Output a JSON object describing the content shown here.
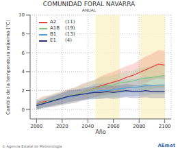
{
  "chart_data": {
    "type": "line",
    "title": "COMUNIDAD FORAL NAVARRA",
    "subtitle": "ANUAL",
    "y_label": "Cambio de la temperatura máxima (°C)",
    "x_label": "Año",
    "footer": "© Agencia Estatal de Meteorología",
    "logo": "AEmet",
    "x": [
      2000,
      2005,
      2010,
      2015,
      2020,
      2025,
      2030,
      2035,
      2040,
      2045,
      2050,
      2055,
      2060,
      2065,
      2070,
      2075,
      2080,
      2085,
      2090,
      2095,
      2100
    ],
    "xlim": [
      1995,
      2105
    ],
    "xticks": [
      2000,
      2020,
      2040,
      2060,
      2080,
      2100
    ],
    "ylim": [
      -1,
      10
    ],
    "yticks": [
      0,
      2,
      4,
      6,
      8,
      10
    ],
    "grid": true,
    "legend": "upper left",
    "shaded_periods": [
      [
        2046,
        2065
      ],
      [
        2081,
        2100
      ]
    ],
    "series": [
      {
        "name": "A2",
        "models": 11,
        "color": "#e8403a",
        "values": [
          0.5,
          0.8,
          0.9,
          1.0,
          1.2,
          1.4,
          1.5,
          1.8,
          2.0,
          2.2,
          2.5,
          2.7,
          2.9,
          3.1,
          3.4,
          3.6,
          3.9,
          4.2,
          4.5,
          4.8,
          4.7
        ],
        "lower": [
          0.0,
          0.2,
          0.3,
          0.3,
          0.5,
          0.6,
          0.7,
          0.9,
          1.1,
          1.3,
          1.5,
          1.6,
          1.8,
          1.9,
          2.2,
          2.4,
          2.6,
          2.8,
          3.1,
          3.3,
          3.2
        ],
        "upper": [
          1.0,
          1.4,
          1.5,
          1.7,
          1.9,
          2.2,
          2.3,
          2.7,
          2.9,
          3.1,
          3.5,
          3.8,
          4.0,
          4.3,
          4.6,
          4.8,
          5.2,
          5.6,
          5.9,
          6.3,
          6.2
        ]
      },
      {
        "name": "A1B",
        "models": 19,
        "color": "#7fc77a",
        "values": [
          0.5,
          0.7,
          0.9,
          1.1,
          1.2,
          1.4,
          1.6,
          1.8,
          2.0,
          2.2,
          2.4,
          2.5,
          2.6,
          2.8,
          2.9,
          3.0,
          3.2,
          3.3,
          3.4,
          3.5,
          3.6
        ],
        "lower": [
          0.0,
          0.1,
          0.3,
          0.4,
          0.5,
          0.7,
          0.8,
          1.0,
          1.1,
          1.3,
          1.4,
          1.5,
          1.6,
          1.7,
          1.8,
          1.9,
          2.0,
          2.1,
          2.2,
          2.3,
          2.3
        ],
        "upper": [
          1.0,
          1.3,
          1.5,
          1.8,
          1.9,
          2.1,
          2.4,
          2.6,
          2.9,
          3.1,
          3.4,
          3.5,
          3.6,
          3.9,
          4.0,
          4.1,
          4.4,
          4.5,
          4.6,
          4.7,
          4.9
        ]
      },
      {
        "name": "B1",
        "models": 13,
        "color": "#5aa0d8",
        "values": [
          0.5,
          0.6,
          0.8,
          1.0,
          1.1,
          1.3,
          1.4,
          1.6,
          1.7,
          1.9,
          2.0,
          2.0,
          2.1,
          2.2,
          2.3,
          2.3,
          2.4,
          2.5,
          2.5,
          2.6,
          2.6
        ],
        "lower": [
          0.0,
          0.1,
          0.2,
          0.4,
          0.5,
          0.6,
          0.7,
          0.9,
          1.0,
          1.1,
          1.2,
          1.2,
          1.3,
          1.3,
          1.4,
          1.4,
          1.5,
          1.5,
          1.6,
          1.6,
          1.6
        ],
        "upper": [
          1.0,
          1.1,
          1.4,
          1.6,
          1.7,
          2.0,
          2.1,
          2.3,
          2.4,
          2.7,
          2.8,
          2.8,
          2.9,
          3.1,
          3.2,
          3.2,
          3.3,
          3.5,
          3.4,
          3.6,
          3.6
        ]
      },
      {
        "name": "E1",
        "models": 4,
        "color": "#2a2f7a",
        "values": [
          0.4,
          0.6,
          0.8,
          1.0,
          1.2,
          1.4,
          1.5,
          1.6,
          1.7,
          1.8,
          1.8,
          1.9,
          1.8,
          1.9,
          2.0,
          1.9,
          1.9,
          2.0,
          1.9,
          1.9,
          1.9
        ],
        "lower": [
          0.0,
          0.2,
          0.3,
          0.5,
          0.6,
          0.8,
          0.9,
          1.0,
          1.1,
          1.1,
          1.1,
          1.2,
          1.1,
          1.2,
          1.3,
          1.2,
          1.2,
          1.3,
          1.2,
          1.2,
          1.2
        ],
        "upper": [
          0.8,
          1.0,
          1.3,
          1.5,
          1.8,
          2.0,
          2.1,
          2.2,
          2.3,
          2.5,
          2.5,
          2.6,
          2.5,
          2.6,
          2.7,
          2.6,
          2.6,
          2.7,
          2.6,
          2.6,
          2.6
        ]
      }
    ]
  }
}
